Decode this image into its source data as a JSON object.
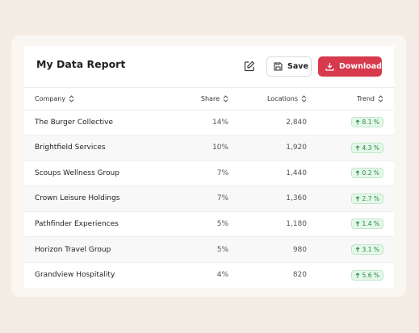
{
  "header": {
    "title": "My Data Report",
    "buttons": {
      "save": "Save",
      "download": "Download"
    }
  },
  "table": {
    "columns": [
      "Company",
      "Share",
      "Locations",
      "Trend"
    ],
    "rows": [
      [
        "The Burger Collective",
        "14%",
        "2,840",
        "8.1 %"
      ],
      [
        "Brightfield Services",
        "10%",
        "1,920",
        "4.3 %"
      ],
      [
        "Scoups Wellness Group",
        "7%",
        "1,440",
        "0.2 %"
      ],
      [
        "Crown Leisure Holdings",
        "7%",
        "1,360",
        "2.7 %"
      ],
      [
        "Pathfinder Experiences",
        "5%",
        "1,180",
        "1.4 %"
      ],
      [
        "Horizon Travel Group",
        "5%",
        "980",
        "3.1 %"
      ],
      [
        "Grandview Hospitality",
        "4%",
        "820",
        "5.6 %"
      ]
    ]
  }
}
